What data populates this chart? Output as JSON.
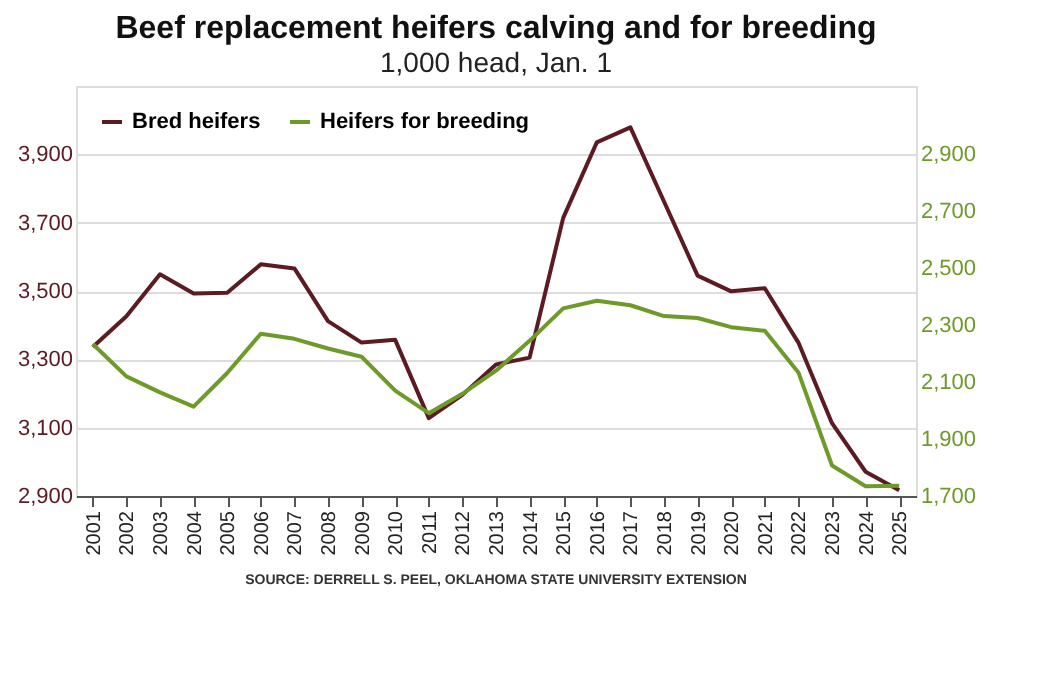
{
  "chart_data": {
    "type": "line",
    "title": "Beef replacement heifers calving and for breeding",
    "subtitle": "1,000 head, Jan. 1",
    "categories": [
      "2001",
      "2002",
      "2003",
      "2004",
      "2005",
      "2006",
      "2007",
      "2008",
      "2009",
      "2010",
      "2011",
      "2012",
      "2013",
      "2014",
      "2015",
      "2016",
      "2017",
      "2018",
      "2019",
      "2020",
      "2021",
      "2022",
      "2023",
      "2024",
      "2025"
    ],
    "series": [
      {
        "name": "Bred heifers",
        "color": "#5c1a22",
        "axis": "y",
        "values": [
          3336,
          3426,
          3549,
          3493,
          3495,
          3578,
          3566,
          3412,
          3349,
          3357,
          3128,
          3196,
          3285,
          3305,
          3714,
          3935,
          3979,
          3762,
          3545,
          3499,
          3508,
          3349,
          3113,
          2971,
          2917
        ]
      },
      {
        "name": "Heifers for breeding",
        "color": "#6e9a2a",
        "axis": "y2",
        "values": [
          2234,
          2120,
          2064,
          2014,
          2132,
          2270,
          2252,
          2218,
          2189,
          2070,
          1991,
          2059,
          2140,
          2245,
          2359,
          2386,
          2370,
          2332,
          2325,
          2293,
          2280,
          2134,
          1807,
          1734,
          1736
        ]
      }
    ],
    "ylim": [
      2900,
      4100
    ],
    "yticks": [
      {
        "value": 2900,
        "label": "2,900"
      },
      {
        "value": 3100,
        "label": "3,100"
      },
      {
        "value": 3300,
        "label": "3,300"
      },
      {
        "value": 3500,
        "label": "3,500"
      },
      {
        "value": 3700,
        "label": "3,700"
      },
      {
        "value": 3900,
        "label": "3,900"
      }
    ],
    "y2lim": [
      1700,
      3140
    ],
    "y2ticks": [
      {
        "value": 1700,
        "label": "1,700"
      },
      {
        "value": 1900,
        "label": "1,900"
      },
      {
        "value": 2100,
        "label": "2,100"
      },
      {
        "value": 2300,
        "label": "2,300"
      },
      {
        "value": 2500,
        "label": "2,500"
      },
      {
        "value": 2700,
        "label": "2,700"
      },
      {
        "value": 2900,
        "label": "2,900"
      }
    ],
    "grid": "y",
    "legend": "top left",
    "marker": "none",
    "line_style": "solid",
    "annotations": [
      "SOURCE: DERRELL S. PEEL, OKLAHOMA STATE UNIVERSITY EXTENSION"
    ]
  }
}
